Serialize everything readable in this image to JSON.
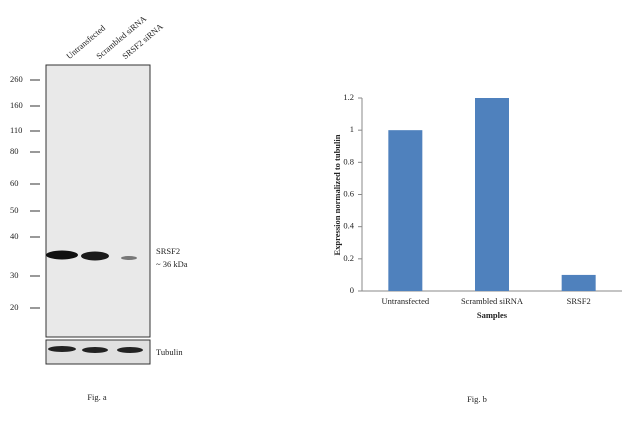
{
  "blot": {
    "lanes": [
      "Untransfected",
      "Scrambled siRNA",
      "SRSF2 siRNA"
    ],
    "markers": [
      "260",
      "160",
      "110",
      "80",
      "60",
      "50",
      "40",
      "30",
      "20"
    ],
    "band_label": "SRSF2",
    "band_size": "~ 36 kDa",
    "loading_label": "Tubulin",
    "caption": "Fig. a"
  },
  "chart_data": {
    "type": "bar",
    "categories": [
      "Untransfected",
      "Scrambled siRNA",
      "SRSF2"
    ],
    "values": [
      1.0,
      1.2,
      0.1
    ],
    "color": "#4f81bd",
    "xlabel": "Samples",
    "ylabel": "Expression normalized to tubulin",
    "ylim": [
      0,
      1.2
    ],
    "yticks": [
      0,
      0.2,
      0.4,
      0.6,
      0.8,
      1,
      1.2
    ],
    "grid": false,
    "caption": "Fig. b"
  }
}
